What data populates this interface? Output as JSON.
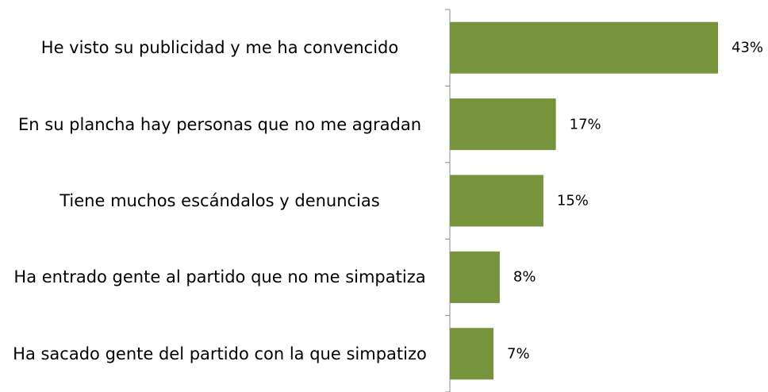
{
  "chart_data": {
    "type": "bar",
    "orientation": "horizontal",
    "categories": [
      "He visto su publicidad y me ha convencido",
      "En su plancha hay personas que no me agradan",
      "Tiene muchos escándalos y denuncias",
      "Ha entrado gente al partido que no me simpatiza",
      "Ha sacado gente del partido con la que simpatizo"
    ],
    "values": [
      43,
      17,
      15,
      8,
      7
    ],
    "value_labels": [
      "43%",
      "17%",
      "15%",
      "8%",
      "7%"
    ],
    "color": "#77933c"
  }
}
